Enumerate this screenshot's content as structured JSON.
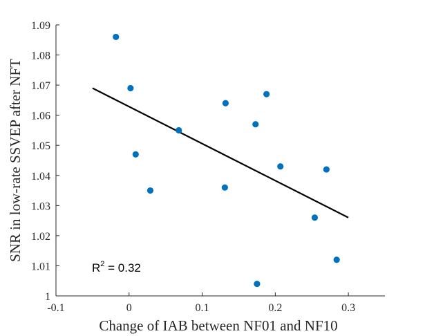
{
  "chart_data": {
    "type": "scatter",
    "title": "",
    "xlabel": "Change of IAB between NF01 and NF10",
    "ylabel": "SNR in low-rate SSVEP after NFT",
    "xlim": [
      -0.1,
      0.35
    ],
    "ylim": [
      1.0,
      1.09
    ],
    "x_ticks": [
      -0.1,
      0,
      0.1,
      0.2,
      0.3
    ],
    "x_tick_labels": [
      "-0.1",
      "0",
      "0.1",
      "0.2",
      "0.3"
    ],
    "y_ticks": [
      1.0,
      1.01,
      1.02,
      1.03,
      1.04,
      1.05,
      1.06,
      1.07,
      1.08,
      1.09
    ],
    "y_tick_labels": [
      "1",
      "1.01",
      "1.02",
      "1.03",
      "1.04",
      "1.05",
      "1.06",
      "1.07",
      "1.08",
      "1.09"
    ],
    "grid": false,
    "legend": "none",
    "series": [
      {
        "marker_color": "#0072BD",
        "points": [
          {
            "x": -0.018,
            "y": 1.086
          },
          {
            "x": 0.002,
            "y": 1.069
          },
          {
            "x": 0.009,
            "y": 1.047
          },
          {
            "x": 0.029,
            "y": 1.035
          },
          {
            "x": 0.068,
            "y": 1.055
          },
          {
            "x": 0.132,
            "y": 1.064
          },
          {
            "x": 0.131,
            "y": 1.036
          },
          {
            "x": 0.173,
            "y": 1.057
          },
          {
            "x": 0.188,
            "y": 1.067
          },
          {
            "x": 0.207,
            "y": 1.043
          },
          {
            "x": 0.175,
            "y": 1.004
          },
          {
            "x": 0.254,
            "y": 1.026
          },
          {
            "x": 0.27,
            "y": 1.042
          },
          {
            "x": 0.284,
            "y": 1.012
          }
        ]
      }
    ],
    "fit_line": {
      "color": "#000000",
      "x": [
        -0.05,
        0.3
      ],
      "y": [
        1.069,
        1.026
      ]
    },
    "annotation": {
      "base": "R",
      "superscript": "2",
      "rest": " = 0.32"
    }
  }
}
